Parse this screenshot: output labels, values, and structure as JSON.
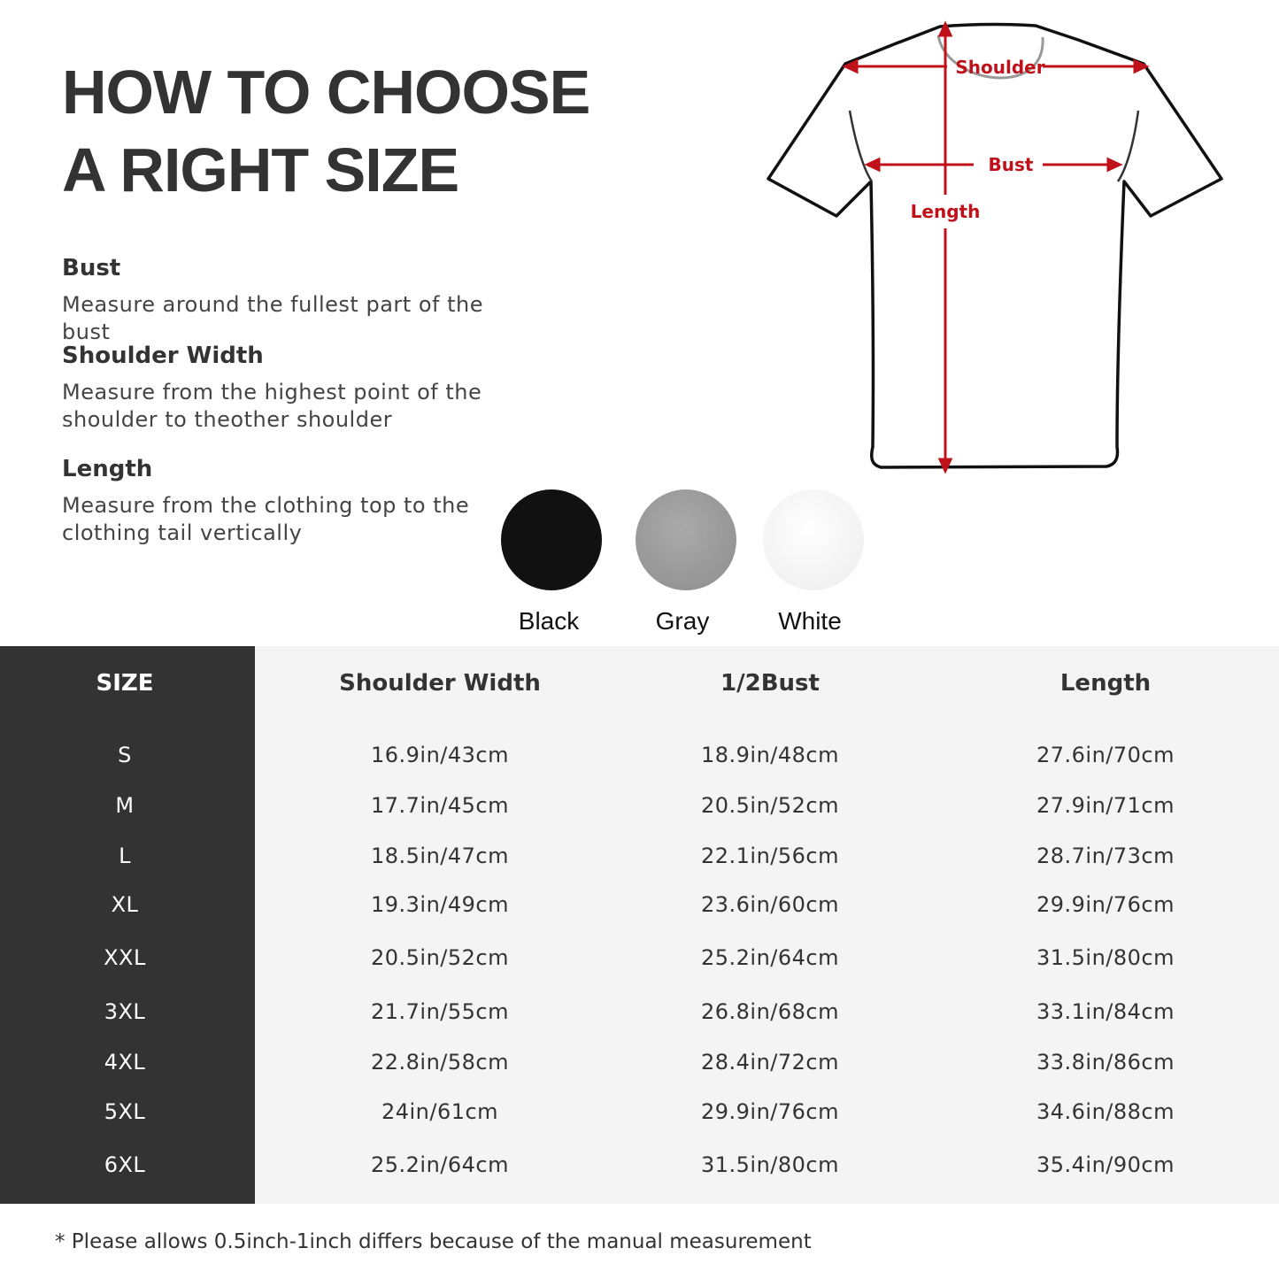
{
  "title": {
    "line1": "HOW TO CHOOSE",
    "line2": "A RIGHT SIZE"
  },
  "sections": [
    {
      "heading": "Bust",
      "text": "Measure around the fullest part of the bust"
    },
    {
      "heading": "Shoulder Width",
      "text": "Measure from the highest point of the shoulder to theother shoulder"
    },
    {
      "heading": "Length",
      "text": "Measure from the clothing top to the clothing tail vertically"
    }
  ],
  "diagram": {
    "shoulder": "Shoulder",
    "bust": "Bust",
    "length": "Length",
    "accent": "#c0101a"
  },
  "colors": [
    {
      "label": "Black",
      "hex": "#111111"
    },
    {
      "label": "Gray",
      "hex": "#9a9a9a"
    },
    {
      "label": "White",
      "hex": "#f3f3f3"
    }
  ],
  "table": {
    "headers": [
      "SIZE",
      "Shoulder Width",
      "1/2Bust",
      "Length"
    ],
    "rows": [
      [
        "S",
        "16.9in/43cm",
        "18.9in/48cm",
        "27.6in/70cm"
      ],
      [
        "M",
        "17.7in/45cm",
        "20.5in/52cm",
        "27.9in/71cm"
      ],
      [
        "L",
        "18.5in/47cm",
        "22.1in/56cm",
        "28.7in/73cm"
      ],
      [
        "XL",
        "19.3in/49cm",
        "23.6in/60cm",
        "29.9in/76cm"
      ],
      [
        "XXL",
        "20.5in/52cm",
        "25.2in/64cm",
        "31.5in/80cm"
      ],
      [
        "3XL",
        "21.7in/55cm",
        "26.8in/68cm",
        "33.1in/84cm"
      ],
      [
        "4XL",
        "22.8in/58cm",
        "28.4in/72cm",
        "33.8in/86cm"
      ],
      [
        "5XL",
        "24in/61cm",
        "29.9in/76cm",
        "34.6in/88cm"
      ],
      [
        "6XL",
        "25.2in/64cm",
        "31.5in/80cm",
        "35.4in/90cm"
      ]
    ]
  },
  "note": "* Please allows 0.5inch-1inch differs because of the  manual measurement"
}
